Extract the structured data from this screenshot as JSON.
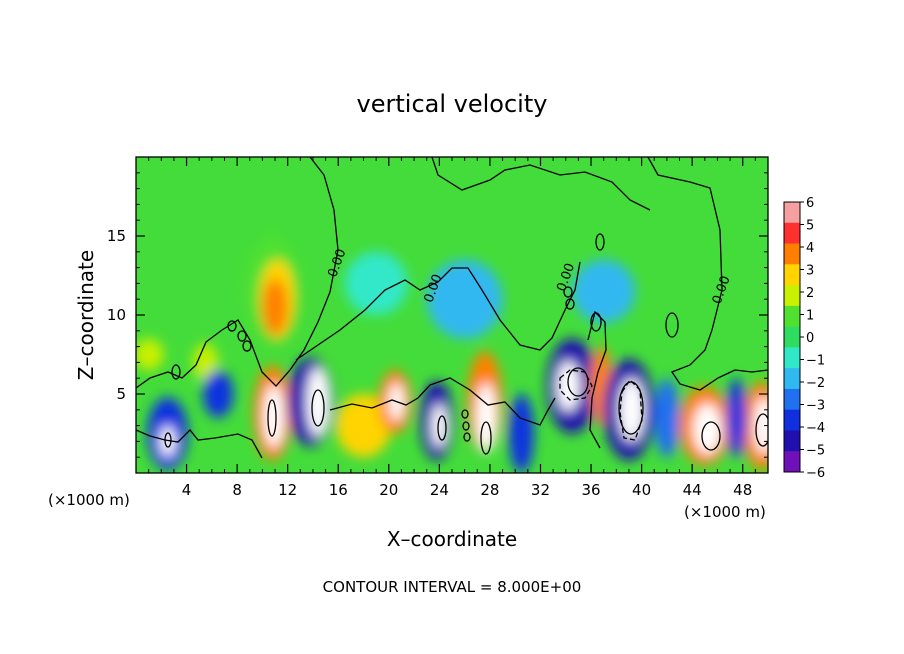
{
  "chart_data": {
    "type": "heatmap",
    "title": "vertical velocity",
    "xlabel": "X–coordinate",
    "ylabel": "Z–coordinate",
    "x_unit_left": "(×1000 m)",
    "x_unit_right": "(×1000 m)",
    "footer": "CONTOUR INTERVAL = 8.000E+00",
    "xlim": [
      0,
      50
    ],
    "ylim": [
      0,
      20
    ],
    "x_ticks": [
      4,
      8,
      12,
      16,
      20,
      24,
      28,
      32,
      36,
      40,
      44,
      48
    ],
    "y_ticks": [
      5,
      10,
      15
    ],
    "colorbar": {
      "min": -6,
      "max": 6,
      "tick_labels": [
        "6",
        "5",
        "4",
        "3",
        "2",
        "1",
        "0",
        "−1",
        "−2",
        "−3",
        "−4",
        "−5",
        "−6"
      ],
      "colors": [
        "#f5a0a0",
        "#ff3030",
        "#ff8000",
        "#ffd400",
        "#c8f000",
        "#50e030",
        "#30dc60",
        "#30e8c8",
        "#30b8f0",
        "#2070f0",
        "#1030e0",
        "#2010b0",
        "#7010b8"
      ]
    },
    "contour_labels": [
      {
        "text": "0.00",
        "x": 16.2,
        "z": 13.2
      },
      {
        "text": "0.00",
        "x": 23.8,
        "z": 11.6
      },
      {
        "text": "0.00",
        "x": 34.3,
        "z": 12.3
      },
      {
        "text": "0.00",
        "x": 46.6,
        "z": 11.5
      }
    ],
    "cells": [
      {
        "x": 10.8,
        "z": 11.5,
        "rx": 2.2,
        "rz": 3.5,
        "v": 1.5
      },
      {
        "x": 11.2,
        "z": 11.0,
        "rx": 1.4,
        "rz": 2.5,
        "v": 3.0
      },
      {
        "x": 11.0,
        "z": 10.5,
        "rx": 1.0,
        "rz": 1.8,
        "v": 4.5
      },
      {
        "x": 26.0,
        "z": 11.0,
        "rx": 3.0,
        "rz": 2.5,
        "v": -1.5
      },
      {
        "x": 19.0,
        "z": 12.0,
        "rx": 2.5,
        "rz": 2.0,
        "v": -1.0
      },
      {
        "x": 37.0,
        "z": 11.5,
        "rx": 2.5,
        "rz": 2.0,
        "v": -2.0
      },
      {
        "x": 1.0,
        "z": 7.5,
        "rx": 1.2,
        "rz": 1.0,
        "v": 2.5
      },
      {
        "x": 5.5,
        "z": 7.0,
        "rx": 1.0,
        "rz": 1.2,
        "v": 1.8
      },
      {
        "x": 2.5,
        "z": 2.5,
        "rx": 1.6,
        "rz": 2.3,
        "v": -3.5
      },
      {
        "x": 2.5,
        "z": 2.0,
        "rx": 0.6,
        "rz": 1.0,
        "v": -6
      },
      {
        "x": 6.5,
        "z": 5.0,
        "rx": 1.2,
        "rz": 1.5,
        "v": -3.5
      },
      {
        "x": 10.8,
        "z": 3.8,
        "rx": 1.5,
        "rz": 3.0,
        "v": 4.0
      },
      {
        "x": 10.9,
        "z": 3.6,
        "rx": 0.8,
        "rz": 2.0,
        "v": 6
      },
      {
        "x": 13.8,
        "z": 4.5,
        "rx": 1.8,
        "rz": 2.8,
        "v": -4.5
      },
      {
        "x": 14.4,
        "z": 4.5,
        "rx": 0.9,
        "rz": 2.2,
        "v": -6
      },
      {
        "x": 18.0,
        "z": 3.0,
        "rx": 2.2,
        "rz": 2.0,
        "v": 3.0
      },
      {
        "x": 20.5,
        "z": 4.5,
        "rx": 1.3,
        "rz": 2.0,
        "v": 4.5
      },
      {
        "x": 20.6,
        "z": 4.5,
        "rx": 0.6,
        "rz": 1.2,
        "v": 6
      },
      {
        "x": 23.8,
        "z": 3.3,
        "rx": 1.3,
        "rz": 2.5,
        "v": -4.5
      },
      {
        "x": 24.0,
        "z": 3.0,
        "rx": 0.6,
        "rz": 1.4,
        "v": -6
      },
      {
        "x": 27.6,
        "z": 4.5,
        "rx": 1.4,
        "rz": 3.2,
        "v": 4.5
      },
      {
        "x": 27.7,
        "z": 3.5,
        "rx": 0.8,
        "rz": 2.2,
        "v": 6
      },
      {
        "x": 30.5,
        "z": 2.5,
        "rx": 1.0,
        "rz": 2.5,
        "v": -4.0
      },
      {
        "x": 34.5,
        "z": 5.5,
        "rx": 2.0,
        "rz": 3.0,
        "v": -4.5
      },
      {
        "x": 34.2,
        "z": 5.5,
        "rx": 0.9,
        "rz": 1.6,
        "v": -6
      },
      {
        "x": 36.8,
        "z": 5.5,
        "rx": 0.9,
        "rz": 2.5,
        "v": 4.5
      },
      {
        "x": 39.0,
        "z": 4.0,
        "rx": 2.0,
        "rz": 3.2,
        "v": -4.5
      },
      {
        "x": 39.2,
        "z": 4.0,
        "rx": 1.0,
        "rz": 2.0,
        "v": -6
      },
      {
        "x": 45.0,
        "z": 3.0,
        "rx": 2.0,
        "rz": 2.5,
        "v": 4.5
      },
      {
        "x": 45.2,
        "z": 2.8,
        "rx": 1.1,
        "rz": 1.6,
        "v": 6
      },
      {
        "x": 49.5,
        "z": 3.0,
        "rx": 1.5,
        "rz": 2.8,
        "v": 4.5
      },
      {
        "x": 49.7,
        "z": 3.0,
        "rx": 0.8,
        "rz": 1.8,
        "v": 6
      },
      {
        "x": 47.5,
        "z": 3.5,
        "rx": 0.8,
        "rz": 2.5,
        "v": -3.5
      },
      {
        "x": 42.0,
        "z": 3.5,
        "rx": 1.0,
        "rz": 2.5,
        "v": -3.0
      }
    ]
  }
}
